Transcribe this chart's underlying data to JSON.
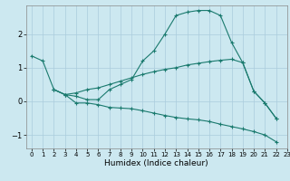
{
  "xlabel": "Humidex (Indice chaleur)",
  "xlim": [
    -0.5,
    23
  ],
  "ylim": [
    -1.4,
    2.85
  ],
  "yticks": [
    -1,
    0,
    1,
    2
  ],
  "xticks": [
    0,
    1,
    2,
    3,
    4,
    5,
    6,
    7,
    8,
    9,
    10,
    11,
    12,
    13,
    14,
    15,
    16,
    17,
    18,
    19,
    20,
    21,
    22,
    23
  ],
  "bg_color": "#cce8f0",
  "grid_color": "#aaccdd",
  "line_color": "#1a7a6e",
  "line1_x": [
    0,
    1,
    2,
    3,
    4,
    5,
    6,
    7,
    8,
    9,
    10,
    11,
    12,
    13,
    14,
    15,
    16,
    17,
    18,
    19,
    20,
    21,
    22
  ],
  "line1_y": [
    1.35,
    1.2,
    0.35,
    0.2,
    0.15,
    0.05,
    0.05,
    0.35,
    0.5,
    0.65,
    1.2,
    1.5,
    2.0,
    2.55,
    2.65,
    2.7,
    2.7,
    2.55,
    1.75,
    1.15,
    0.3,
    -0.05,
    -0.5
  ],
  "line2_x": [
    2,
    3,
    4,
    5,
    6,
    7,
    8,
    9,
    10,
    11,
    12,
    13,
    14,
    15,
    16,
    17,
    18,
    19,
    20,
    21,
    22
  ],
  "line2_y": [
    0.35,
    0.2,
    0.25,
    0.35,
    0.4,
    0.5,
    0.6,
    0.7,
    0.8,
    0.88,
    0.95,
    1.0,
    1.08,
    1.13,
    1.18,
    1.22,
    1.25,
    1.15,
    0.3,
    -0.05,
    -0.5
  ],
  "line3_x": [
    2,
    3,
    4,
    5,
    6,
    7,
    8,
    9,
    10,
    11,
    12,
    13,
    14,
    15,
    16,
    17,
    18,
    19,
    20,
    21,
    22
  ],
  "line3_y": [
    0.35,
    0.2,
    -0.05,
    -0.05,
    -0.1,
    -0.18,
    -0.2,
    -0.22,
    -0.28,
    -0.35,
    -0.42,
    -0.48,
    -0.52,
    -0.55,
    -0.6,
    -0.68,
    -0.75,
    -0.82,
    -0.9,
    -1.0,
    -1.2
  ]
}
